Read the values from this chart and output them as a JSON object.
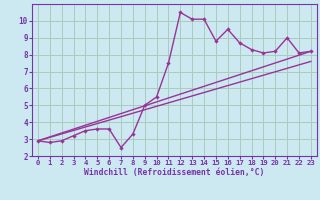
{
  "title": "",
  "xlabel": "Windchill (Refroidissement éolien,°C)",
  "ylabel": "",
  "bg_color": "#cce8f0",
  "grid_color": "#aaccbb",
  "line_color": "#993399",
  "spine_color": "#7733aa",
  "xlim": [
    -0.5,
    23.5
  ],
  "ylim": [
    2,
    11
  ],
  "xticks": [
    0,
    1,
    2,
    3,
    4,
    5,
    6,
    7,
    8,
    9,
    10,
    11,
    12,
    13,
    14,
    15,
    16,
    17,
    18,
    19,
    20,
    21,
    22,
    23
  ],
  "yticks": [
    2,
    3,
    4,
    5,
    6,
    7,
    8,
    9,
    10
  ],
  "main_x": [
    0,
    1,
    2,
    3,
    4,
    5,
    6,
    7,
    8,
    9,
    10,
    11,
    12,
    13,
    14,
    15,
    16,
    17,
    18,
    19,
    20,
    21,
    22,
    23
  ],
  "main_y": [
    2.9,
    2.8,
    2.9,
    3.2,
    3.5,
    3.6,
    3.6,
    2.5,
    3.3,
    5.0,
    5.5,
    7.5,
    10.5,
    10.1,
    10.1,
    8.8,
    9.5,
    8.7,
    8.3,
    8.1,
    8.2,
    9.0,
    8.1,
    8.2
  ],
  "line2_x": [
    0,
    23
  ],
  "line2_y": [
    2.9,
    8.2
  ],
  "line3_x": [
    0,
    23
  ],
  "line3_y": [
    2.9,
    7.6
  ]
}
